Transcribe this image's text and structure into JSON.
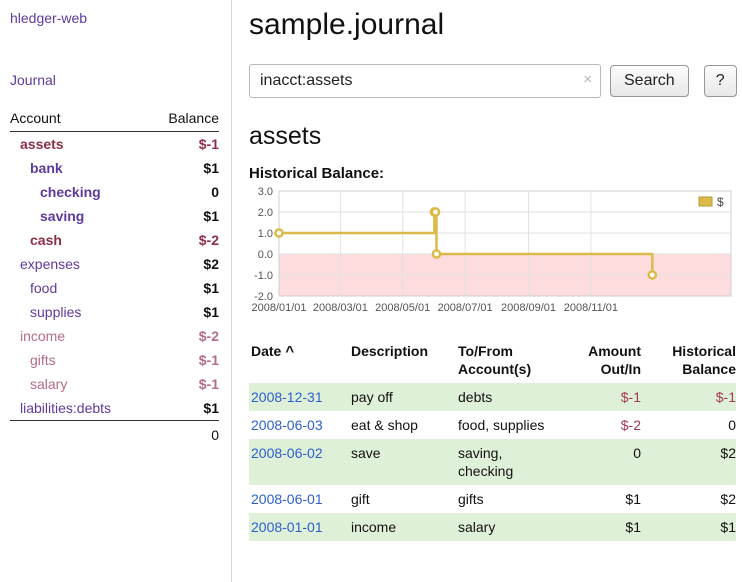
{
  "app": {
    "title": "hledger-web",
    "nav_journal": "Journal"
  },
  "colors": {
    "link-purple": "#5e3a9e",
    "date-link-blue": "#2b5fcc",
    "negative-dark": "#8e2e46",
    "negative-light": "#b56d80",
    "negative-table": "#a43a50",
    "row-green": "#dff0d8"
  },
  "sidebar": {
    "accounts": {
      "col_account": "Account",
      "col_balance": "Balance",
      "rows": [
        {
          "name": "assets",
          "indent": 0,
          "balance": "$-1",
          "bold": true,
          "negative": true
        },
        {
          "name": "bank",
          "indent": 1,
          "balance": "$1",
          "bold": true,
          "negative": false
        },
        {
          "name": "checking",
          "indent": 2,
          "balance": "0",
          "bold": true,
          "negative": false
        },
        {
          "name": "saving",
          "indent": 2,
          "balance": "$1",
          "bold": true,
          "negative": false
        },
        {
          "name": "cash",
          "indent": 1,
          "balance": "$-2",
          "bold": true,
          "negative": true
        },
        {
          "name": "expenses",
          "indent": 0,
          "balance": "$2",
          "bold": false,
          "negative": false
        },
        {
          "name": "food",
          "indent": 1,
          "balance": "$1",
          "bold": false,
          "negative": false
        },
        {
          "name": "supplies",
          "indent": 1,
          "balance": "$1",
          "bold": false,
          "negative": false
        },
        {
          "name": "income",
          "indent": 0,
          "balance": "$-2",
          "bold": false,
          "negative": true
        },
        {
          "name": "gifts",
          "indent": 1,
          "balance": "$-1",
          "bold": false,
          "negative": true
        },
        {
          "name": "salary",
          "indent": 1,
          "balance": "$-1",
          "bold": false,
          "negative": true
        },
        {
          "name": "liabilities:debts",
          "indent": 0,
          "balance": "$1",
          "bold": false,
          "negative": false
        }
      ],
      "total": "0"
    }
  },
  "main": {
    "title": "sample.journal",
    "search": {
      "value": "inacct:assets",
      "clear": "×",
      "submit": "Search",
      "help": "?"
    },
    "account_heading": "assets",
    "chart_heading": "Historical Balance:"
  },
  "chart_data": {
    "type": "line",
    "title": "Historical Balance",
    "step": true,
    "ylim": [
      -2,
      3
    ],
    "y_ticks": [
      3.0,
      2.0,
      1.0,
      0.0,
      -1.0,
      -2.0
    ],
    "x_ticks": [
      "2008/01/01",
      "2008/03/01",
      "2008/05/01",
      "2008/07/01",
      "2008/09/01",
      "2008/11/01"
    ],
    "x_range_days": [
      0,
      442
    ],
    "negative_fill": "#fcdcdc",
    "grid": true,
    "legend": {
      "label": "$",
      "position": "top-right"
    },
    "series": [
      {
        "name": "$",
        "color": "#dcba4a",
        "points": [
          {
            "date": "2008-01-01",
            "value": 1
          },
          {
            "date": "2008-06-01",
            "value": 2
          },
          {
            "date": "2008-06-02",
            "value": 2
          },
          {
            "date": "2008-06-03",
            "value": 0
          },
          {
            "date": "2008-12-31",
            "value": -1
          }
        ]
      }
    ]
  },
  "register": {
    "sort_indicator": "^",
    "headers": [
      "Date",
      "Description",
      "To/From Account(s)",
      "Amount Out/In",
      "Historical Balance"
    ],
    "rows": [
      {
        "date": "2008-12-31",
        "description": "pay off",
        "accounts": "debts",
        "amount": "$-1",
        "amount_neg": true,
        "balance": "$-1",
        "balance_neg": true
      },
      {
        "date": "2008-06-03",
        "description": "eat & shop",
        "accounts": "food, supplies",
        "amount": "$-2",
        "amount_neg": true,
        "balance": "0",
        "balance_neg": false
      },
      {
        "date": "2008-06-02",
        "description": "save",
        "accounts": "saving, checking",
        "amount": "0",
        "amount_neg": false,
        "balance": "$2",
        "balance_neg": false
      },
      {
        "date": "2008-06-01",
        "description": "gift",
        "accounts": "gifts",
        "amount": "$1",
        "amount_neg": false,
        "balance": "$2",
        "balance_neg": false
      },
      {
        "date": "2008-01-01",
        "description": "income",
        "accounts": "salary",
        "amount": "$1",
        "amount_neg": false,
        "balance": "$1",
        "balance_neg": false
      }
    ]
  }
}
